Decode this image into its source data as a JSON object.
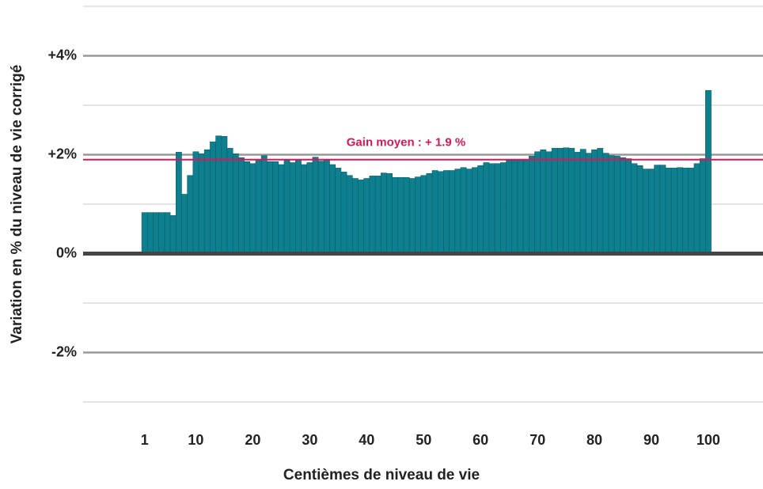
{
  "chart_data": {
    "type": "bar",
    "x_title": "Centièmes de niveau de vie",
    "y_title": "Variation en % du niveau de vie corrigé",
    "x": [
      1,
      2,
      3,
      4,
      5,
      6,
      7,
      8,
      9,
      10,
      11,
      12,
      13,
      14,
      15,
      16,
      17,
      18,
      19,
      20,
      21,
      22,
      23,
      24,
      25,
      26,
      27,
      28,
      29,
      30,
      31,
      32,
      33,
      34,
      35,
      36,
      37,
      38,
      39,
      40,
      41,
      42,
      43,
      44,
      45,
      46,
      47,
      48,
      49,
      50,
      51,
      52,
      53,
      54,
      55,
      56,
      57,
      58,
      59,
      60,
      61,
      62,
      63,
      64,
      65,
      66,
      67,
      68,
      69,
      70,
      71,
      72,
      73,
      74,
      75,
      76,
      77,
      78,
      79,
      80,
      81,
      82,
      83,
      84,
      85,
      86,
      87,
      88,
      89,
      90,
      91,
      92,
      93,
      94,
      95,
      96,
      97,
      98,
      99,
      100
    ],
    "values": [
      0.83,
      0.83,
      0.83,
      0.83,
      0.83,
      0.77,
      2.05,
      1.2,
      1.58,
      2.06,
      2.02,
      2.1,
      2.26,
      2.38,
      2.37,
      2.13,
      2.02,
      1.94,
      1.86,
      1.82,
      1.9,
      1.98,
      1.86,
      1.86,
      1.8,
      1.89,
      1.84,
      1.89,
      1.8,
      1.84,
      1.95,
      1.87,
      1.89,
      1.8,
      1.73,
      1.65,
      1.58,
      1.52,
      1.49,
      1.52,
      1.57,
      1.57,
      1.63,
      1.62,
      1.54,
      1.54,
      1.54,
      1.52,
      1.55,
      1.58,
      1.62,
      1.68,
      1.66,
      1.68,
      1.68,
      1.71,
      1.74,
      1.71,
      1.74,
      1.78,
      1.84,
      1.82,
      1.82,
      1.84,
      1.89,
      1.89,
      1.9,
      1.9,
      1.97,
      2.06,
      2.1,
      2.06,
      2.13,
      2.13,
      2.14,
      2.13,
      2.05,
      2.11,
      2.03,
      2.1,
      2.13,
      2.03,
      1.98,
      1.97,
      1.94,
      1.92,
      1.82,
      1.78,
      1.71,
      1.71,
      1.79,
      1.79,
      1.73,
      1.73,
      1.74,
      1.73,
      1.73,
      1.82,
      1.92,
      3.3
    ],
    "color": "#0e7f8f",
    "xlim": [
      -9.8,
      109.6
    ],
    "xticks": [
      1,
      10,
      20,
      30,
      40,
      50,
      60,
      70,
      80,
      90,
      100
    ],
    "ylim": [
      -3,
      5
    ],
    "yticks": [
      {
        "value": -2,
        "label": "-2%"
      },
      {
        "value": 0,
        "label": "0%"
      },
      {
        "value": 2,
        "label": "+2%"
      },
      {
        "value": 4,
        "label": "+4%"
      }
    ],
    "minor_gridlines": [
      -3,
      -1,
      1,
      3,
      5
    ],
    "grid": true,
    "reference_line": {
      "value": 1.9,
      "label": "Gain moyen : + 1.9 %",
      "color": "#d6185b"
    }
  }
}
